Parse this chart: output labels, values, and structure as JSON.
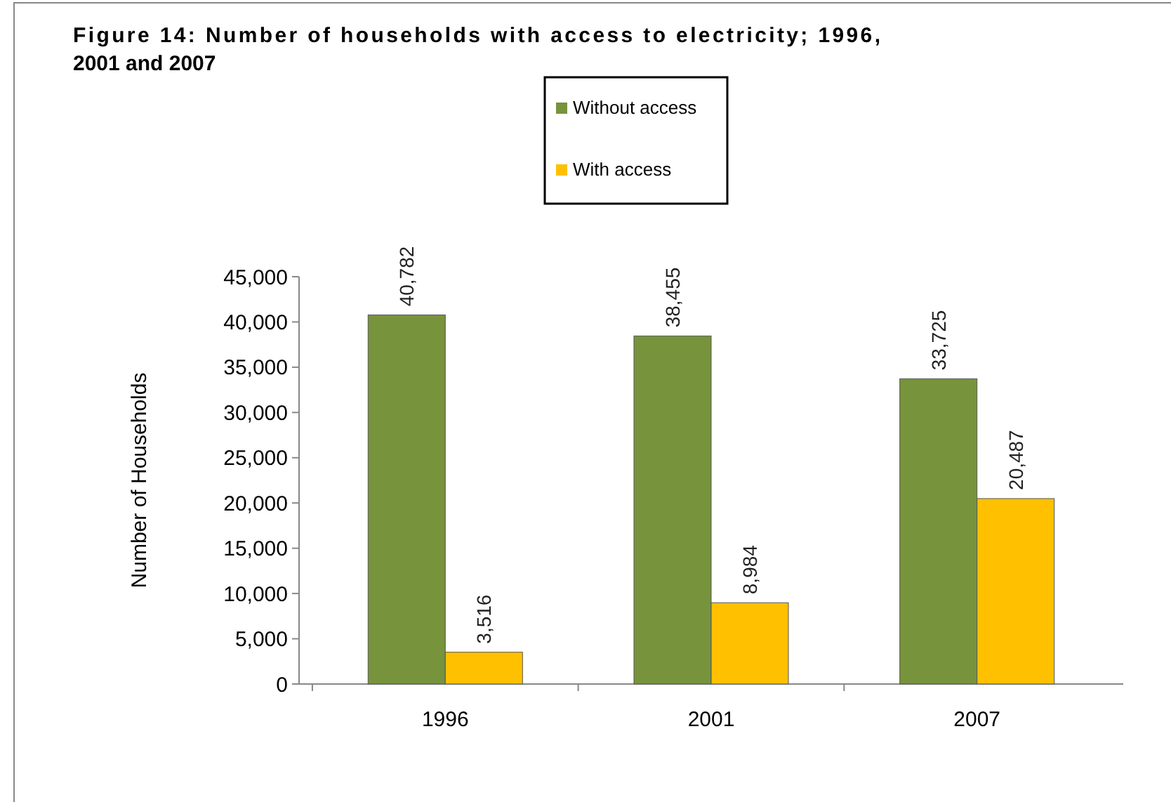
{
  "chart_data": {
    "type": "bar",
    "title": "Figure 14: Number of households with access to electricity; 1996, 2001 and 2007",
    "ylabel": "Number of Households",
    "categories": [
      "1996",
      "2001",
      "2007"
    ],
    "series": [
      {
        "name": "Without access",
        "color": "#77933c",
        "values": [
          40782,
          38455,
          33725
        ],
        "value_labels": [
          "40,782",
          "38,455",
          "33,725"
        ]
      },
      {
        "name": "With access",
        "color": "#ffc000",
        "values": [
          3516,
          8984,
          20487
        ],
        "value_labels": [
          "3,516",
          "8,984",
          "20,487"
        ]
      }
    ],
    "ylim": [
      0,
      45000
    ],
    "yticks": [
      {
        "value": 0,
        "label": "0"
      },
      {
        "value": 5000,
        "label": "5,000"
      },
      {
        "value": 10000,
        "label": "10,000"
      },
      {
        "value": 15000,
        "label": "15,000"
      },
      {
        "value": 20000,
        "label": "20,000"
      },
      {
        "value": 25000,
        "label": "25,000"
      },
      {
        "value": 30000,
        "label": "30,000"
      },
      {
        "value": 35000,
        "label": "35,000"
      },
      {
        "value": 40000,
        "label": "40,000"
      },
      {
        "value": 45000,
        "label": "45,000"
      }
    ],
    "grid": false,
    "legend": "top"
  }
}
